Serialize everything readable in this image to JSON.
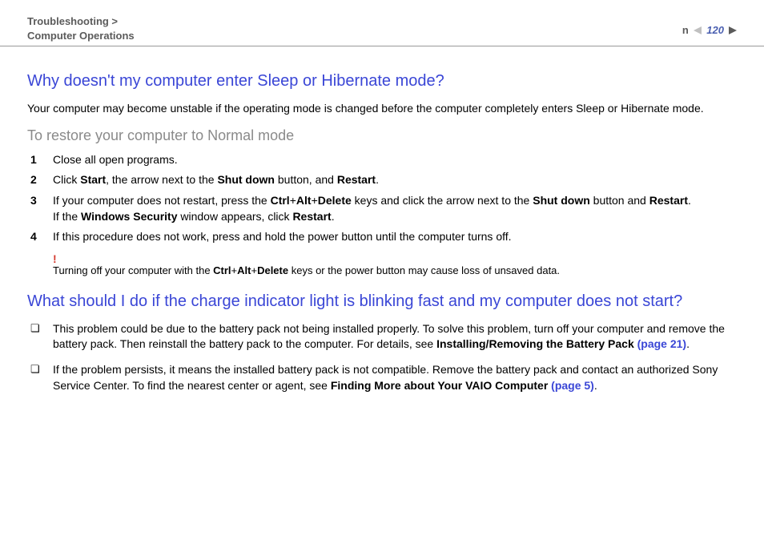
{
  "header": {
    "breadcrumb_section": "Troubleshooting >",
    "breadcrumb_page": "Computer Operations",
    "page_number": "120",
    "n_label": "n"
  },
  "colors": {
    "heading_blue": "#3a46d6",
    "subheading_gray": "#8a8a8a",
    "breadcrumb_gray": "#5b5b5b",
    "page_num_blue": "#4a5fb0",
    "warning_red": "#d43a2f",
    "nav_left": "#c0c0c0",
    "nav_right": "#5b5b5b",
    "rule": "#999999"
  },
  "section1": {
    "heading": "Why doesn't my computer enter Sleep or Hibernate mode?",
    "intro": "Your computer may become unstable if the operating mode is changed before the computer completely enters Sleep or Hibernate mode.",
    "subheading": "To restore your computer to Normal mode",
    "steps": [
      {
        "n": "1",
        "html": "Close all open programs."
      },
      {
        "n": "2",
        "html": "Click <b>Start</b>, the arrow next to the <b>Shut down</b> button, and <b>Restart</b>."
      },
      {
        "n": "3",
        "html": "If your computer does not restart, press the <b>Ctrl</b>+<b>Alt</b>+<b>Delete</b> keys and click the arrow next to the <b>Shut down</b> button and <b>Restart</b>.<br>If the <b>Windows Security</b> window appears, click <b>Restart</b>."
      },
      {
        "n": "4",
        "html": "If this procedure does not work, press and hold the power button until the computer turns off."
      }
    ],
    "warning_mark": "!",
    "warning_html": "Turning off your computer with the <b>Ctrl</b>+<b>Alt</b>+<b>Delete</b> keys or the power button may cause loss of unsaved data."
  },
  "section2": {
    "heading": "What should I do if the charge indicator light is blinking fast and my computer does not start?",
    "bullets": [
      {
        "html": "This problem could be due to the battery pack not being installed properly. To solve this problem, turn off your computer and remove the battery pack. Then reinstall the battery pack to the computer. For details, see <b>Installing/Removing the Battery Pack <span class=\"link-blue\">(page 21)</span></b>."
      },
      {
        "html": "If the problem persists, it means the installed battery pack is not compatible. Remove the battery pack and contact an authorized Sony Service Center. To find the nearest center or agent, see <b>Finding More about Your VAIO Computer <span class=\"link-blue\">(page 5)</span></b>."
      }
    ]
  }
}
